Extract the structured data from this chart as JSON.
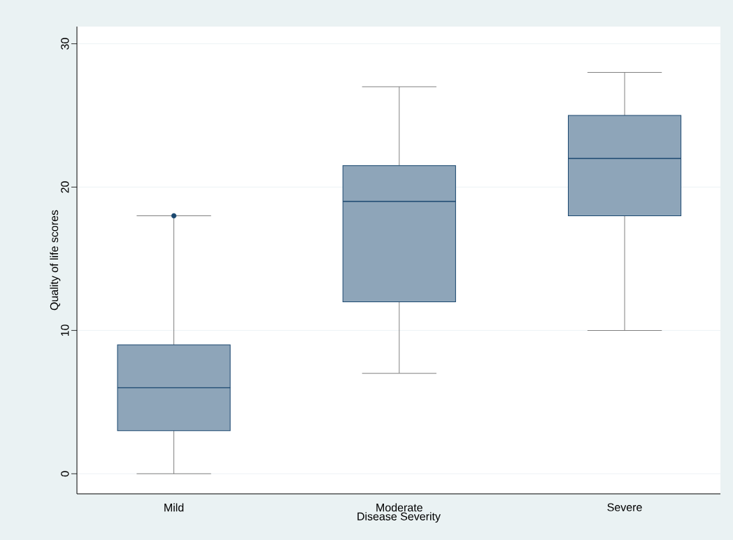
{
  "chart_data": {
    "type": "box",
    "xlabel": "Disease Severity",
    "ylabel": "Quality of life scores",
    "categories": [
      "Mild",
      "Moderate",
      "Severe"
    ],
    "boxes": [
      {
        "low": 0,
        "q1": 3,
        "median": 6,
        "q3": 9,
        "high": 18,
        "outliers": [
          18
        ]
      },
      {
        "low": 7,
        "q1": 12,
        "median": 19,
        "q3": 21.5,
        "high": 27
      },
      {
        "low": 10,
        "q1": 18,
        "median": 22,
        "q3": 25,
        "high": 28
      }
    ],
    "ylim": [
      -1.4,
      31.2
    ],
    "yticks": [
      0,
      10,
      20,
      30
    ],
    "grid": "y",
    "color": "#8ea5b9"
  }
}
